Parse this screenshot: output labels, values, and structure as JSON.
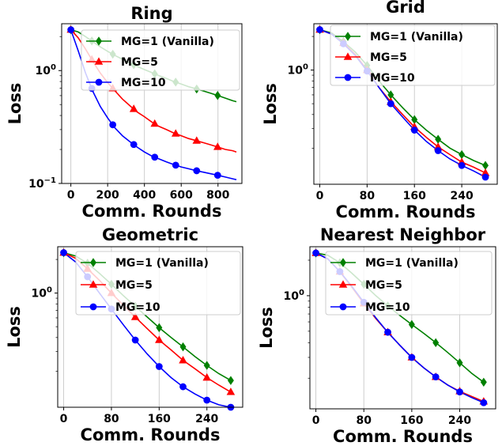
{
  "chart_data": [
    {
      "type": "line",
      "title": "Ring",
      "xlabel": "Comm. Rounds",
      "ylabel": "Loss",
      "yscale": "log",
      "xlim": [
        -50,
        930
      ],
      "ylim": [
        0.1,
        2.6
      ],
      "xticks": [
        0,
        200,
        400,
        600,
        800
      ],
      "xtick_labels": [
        "0",
        "200",
        "400",
        "600",
        "800"
      ],
      "yticks": [
        0.1,
        1
      ],
      "ytick_labels": [
        {
          "base": "10",
          "exp": "−1"
        },
        {
          "base": "10",
          "exp": "0"
        }
      ],
      "grid": true,
      "legend_position": "top-right",
      "series": [
        {
          "name": "MG=1 (Vanilla)",
          "color": "#008000",
          "marker": "diamond",
          "x": [
            0,
            40,
            80,
            120,
            160,
            200,
            240,
            280,
            320,
            360,
            400,
            440,
            480,
            520,
            560,
            600,
            640,
            680,
            720,
            760,
            800,
            840,
            880,
            900
          ],
          "y": [
            2.3,
            2.2,
            2.0,
            1.8,
            1.62,
            1.48,
            1.36,
            1.26,
            1.17,
            1.09,
            1.02,
            0.96,
            0.9,
            0.85,
            0.8,
            0.76,
            0.72,
            0.69,
            0.66,
            0.63,
            0.6,
            0.57,
            0.54,
            0.53
          ],
          "markers_x": [
            0,
            114,
            228,
            342,
            456,
            570,
            684,
            798
          ]
        },
        {
          "name": "MG=5",
          "color": "#ff0000",
          "marker": "triangle",
          "x": [
            0,
            40,
            80,
            120,
            160,
            200,
            240,
            280,
            320,
            360,
            400,
            440,
            480,
            520,
            560,
            600,
            640,
            680,
            720,
            760,
            800,
            840,
            880,
            900
          ],
          "y": [
            2.3,
            1.95,
            1.55,
            1.2,
            0.95,
            0.78,
            0.66,
            0.56,
            0.49,
            0.43,
            0.39,
            0.35,
            0.32,
            0.3,
            0.28,
            0.265,
            0.25,
            0.24,
            0.23,
            0.22,
            0.21,
            0.2,
            0.195,
            0.19
          ],
          "markers_x": [
            0,
            114,
            228,
            342,
            456,
            570,
            684,
            798
          ]
        },
        {
          "name": "MG=10",
          "color": "#0000ff",
          "marker": "circle",
          "x": [
            0,
            40,
            80,
            120,
            160,
            200,
            240,
            280,
            320,
            360,
            400,
            440,
            480,
            520,
            560,
            600,
            640,
            680,
            720,
            760,
            800,
            840,
            880,
            900
          ],
          "y": [
            2.3,
            1.5,
            0.95,
            0.65,
            0.48,
            0.38,
            0.31,
            0.265,
            0.235,
            0.21,
            0.19,
            0.175,
            0.165,
            0.155,
            0.147,
            0.14,
            0.135,
            0.13,
            0.126,
            0.122,
            0.118,
            0.114,
            0.11,
            0.108
          ],
          "markers_x": [
            0,
            114,
            228,
            342,
            456,
            570,
            684,
            798
          ]
        }
      ]
    },
    {
      "type": "line",
      "title": "Grid",
      "xlabel": "Comm. Rounds",
      "ylabel": "Loss",
      "yscale": "log",
      "xlim": [
        -10,
        300
      ],
      "ylim": [
        0.095,
        2.6
      ],
      "xticks": [
        0,
        80,
        160,
        240
      ],
      "xtick_labels": [
        "0",
        "80",
        "160",
        "240"
      ],
      "yticks": [
        1
      ],
      "ytick_labels": [
        {
          "base": "10",
          "exp": "0"
        }
      ],
      "grid": true,
      "legend_position": "top-right",
      "series": [
        {
          "name": "MG=1 (Vanilla)",
          "color": "#008000",
          "marker": "diamond",
          "x": [
            0,
            20,
            40,
            60,
            80,
            100,
            120,
            140,
            160,
            180,
            200,
            220,
            240,
            260,
            280
          ],
          "y": [
            2.3,
            2.15,
            1.8,
            1.45,
            1.1,
            0.8,
            0.6,
            0.46,
            0.36,
            0.29,
            0.24,
            0.2,
            0.175,
            0.155,
            0.14
          ],
          "markers_x": [
            0,
            40,
            80,
            120,
            160,
            200,
            240,
            280
          ]
        },
        {
          "name": "MG=5",
          "color": "#ff0000",
          "marker": "triangle",
          "x": [
            0,
            20,
            40,
            60,
            80,
            100,
            120,
            140,
            160,
            180,
            200,
            220,
            240,
            260,
            280
          ],
          "y": [
            2.3,
            2.1,
            1.75,
            1.38,
            1.0,
            0.7,
            0.52,
            0.4,
            0.31,
            0.25,
            0.205,
            0.175,
            0.15,
            0.135,
            0.12
          ],
          "markers_x": [
            0,
            40,
            80,
            120,
            160,
            200,
            240,
            280
          ]
        },
        {
          "name": "MG=10",
          "color": "#0000ff",
          "marker": "circle",
          "x": [
            0,
            20,
            40,
            60,
            80,
            100,
            120,
            140,
            160,
            180,
            200,
            220,
            240,
            260,
            280
          ],
          "y": [
            2.3,
            2.1,
            1.72,
            1.35,
            0.98,
            0.7,
            0.5,
            0.38,
            0.29,
            0.23,
            0.19,
            0.16,
            0.14,
            0.125,
            0.11
          ],
          "markers_x": [
            0,
            40,
            80,
            120,
            160,
            200,
            240,
            280
          ]
        }
      ]
    },
    {
      "type": "line",
      "title": "Geometric",
      "xlabel": "Comm. Rounds",
      "ylabel": "Loss",
      "yscale": "log",
      "xlim": [
        -10,
        300
      ],
      "ylim": [
        0.095,
        2.6
      ],
      "xticks": [
        0,
        80,
        160,
        240
      ],
      "xtick_labels": [
        "0",
        "80",
        "160",
        "240"
      ],
      "yticks": [
        1
      ],
      "ytick_labels": [
        {
          "base": "10",
          "exp": "0"
        }
      ],
      "grid": true,
      "legend_position": "top-right",
      "series": [
        {
          "name": "MG=1 (Vanilla)",
          "color": "#008000",
          "marker": "diamond",
          "x": [
            0,
            20,
            40,
            60,
            80,
            100,
            120,
            140,
            160,
            180,
            200,
            220,
            240,
            260,
            280
          ],
          "y": [
            2.3,
            2.15,
            1.85,
            1.5,
            1.2,
            0.95,
            0.76,
            0.61,
            0.49,
            0.4,
            0.33,
            0.27,
            0.225,
            0.19,
            0.165
          ],
          "markers_x": [
            0,
            40,
            80,
            120,
            160,
            200,
            240,
            280
          ]
        },
        {
          "name": "MG=5",
          "color": "#ff0000",
          "marker": "triangle",
          "x": [
            0,
            20,
            40,
            60,
            80,
            100,
            120,
            140,
            160,
            180,
            200,
            220,
            240,
            260,
            280
          ],
          "y": [
            2.3,
            2.05,
            1.65,
            1.3,
            1.0,
            0.78,
            0.61,
            0.48,
            0.38,
            0.31,
            0.25,
            0.21,
            0.175,
            0.15,
            0.13
          ],
          "markers_x": [
            0,
            40,
            80,
            120,
            160,
            200,
            240,
            280
          ]
        },
        {
          "name": "MG=10",
          "color": "#0000ff",
          "marker": "circle",
          "x": [
            0,
            20,
            40,
            60,
            80,
            100,
            120,
            140,
            160,
            180,
            200,
            220,
            240,
            260,
            280
          ],
          "y": [
            2.3,
            1.9,
            1.4,
            1.0,
            0.72,
            0.52,
            0.38,
            0.285,
            0.22,
            0.175,
            0.145,
            0.125,
            0.11,
            0.1,
            0.095
          ],
          "markers_x": [
            0,
            40,
            80,
            120,
            160,
            200,
            240,
            280
          ]
        }
      ]
    },
    {
      "type": "line",
      "title": "Nearest Neighbor",
      "xlabel": "Comm. Rounds",
      "ylabel": "Loss",
      "yscale": "log",
      "xlim": [
        -10,
        300
      ],
      "ylim": [
        0.11,
        2.6
      ],
      "xticks": [
        0,
        80,
        160,
        240
      ],
      "xtick_labels": [
        "0",
        "80",
        "160",
        "240"
      ],
      "yticks": [
        1
      ],
      "ytick_labels": [
        {
          "base": "10",
          "exp": "0"
        }
      ],
      "grid": true,
      "legend_position": "top-right",
      "series": [
        {
          "name": "MG=1 (Vanilla)",
          "color": "#008000",
          "marker": "diamond",
          "x": [
            0,
            20,
            40,
            60,
            80,
            100,
            120,
            140,
            160,
            180,
            200,
            220,
            240,
            260,
            280
          ],
          "y": [
            2.3,
            2.2,
            1.9,
            1.55,
            1.25,
            1.0,
            0.82,
            0.68,
            0.57,
            0.48,
            0.4,
            0.33,
            0.27,
            0.22,
            0.185
          ],
          "markers_x": [
            0,
            40,
            80,
            120,
            160,
            200,
            240,
            280
          ]
        },
        {
          "name": "MG=5",
          "color": "#ff0000",
          "marker": "triangle",
          "x": [
            0,
            20,
            40,
            60,
            80,
            100,
            120,
            140,
            160,
            180,
            200,
            220,
            240,
            260,
            280
          ],
          "y": [
            2.3,
            2.05,
            1.6,
            1.18,
            0.86,
            0.64,
            0.49,
            0.38,
            0.3,
            0.245,
            0.205,
            0.175,
            0.155,
            0.14,
            0.127
          ],
          "markers_x": [
            0,
            40,
            80,
            120,
            160,
            200,
            240,
            280
          ]
        },
        {
          "name": "MG=10",
          "color": "#0000ff",
          "marker": "circle",
          "x": [
            0,
            20,
            40,
            60,
            80,
            100,
            120,
            140,
            160,
            180,
            200,
            220,
            240,
            260,
            280
          ],
          "y": [
            2.3,
            2.05,
            1.6,
            1.2,
            0.88,
            0.65,
            0.49,
            0.38,
            0.3,
            0.245,
            0.205,
            0.175,
            0.153,
            0.137,
            0.124
          ],
          "markers_x": [
            0,
            40,
            80,
            120,
            160,
            200,
            240,
            280
          ]
        }
      ]
    }
  ]
}
